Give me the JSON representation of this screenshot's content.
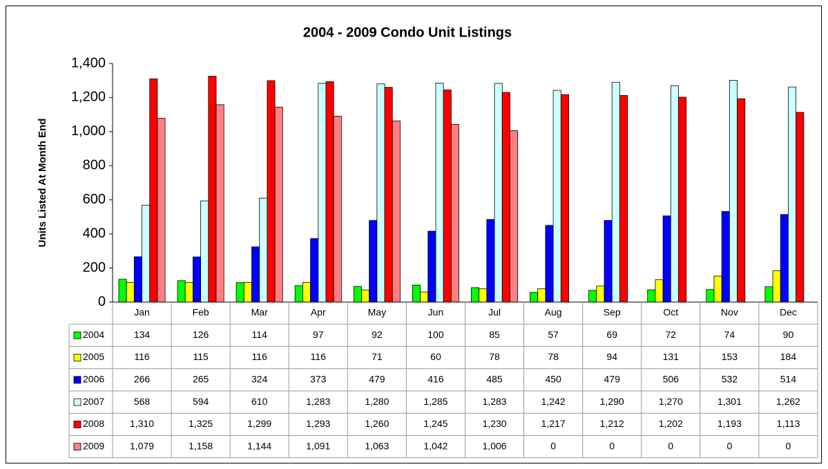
{
  "chart_data": {
    "type": "bar",
    "title": "2004 - 2009 Condo Unit Listings",
    "y_label": "Units Listed At Month End",
    "categories": [
      "Jan",
      "Feb",
      "Mar",
      "Apr",
      "May",
      "Jun",
      "Jul",
      "Aug",
      "Sep",
      "Oct",
      "Nov",
      "Dec"
    ],
    "series": [
      {
        "name": "2004",
        "color": "#00ff00",
        "values": [
          134,
          126,
          114,
          97,
          92,
          100,
          85,
          57,
          69,
          72,
          74,
          90
        ]
      },
      {
        "name": "2005",
        "color": "#ffff00",
        "values": [
          116,
          115,
          116,
          116,
          71,
          60,
          78,
          78,
          94,
          131,
          153,
          184
        ]
      },
      {
        "name": "2006",
        "color": "#0000ff",
        "values": [
          266,
          265,
          324,
          373,
          479,
          416,
          485,
          450,
          479,
          506,
          532,
          514
        ]
      },
      {
        "name": "2007",
        "color": "#ccffff",
        "values": [
          568,
          594,
          610,
          1283,
          1280,
          1285,
          1283,
          1242,
          1290,
          1270,
          1301,
          1262
        ],
        "value_labels": [
          "568",
          "594",
          "610",
          "1,283",
          "1,280",
          "1,285",
          "1,283",
          "1,242",
          "1,290",
          "1,270",
          "1,301",
          "1,262"
        ]
      },
      {
        "name": "2008",
        "color": "#ff0000",
        "values": [
          1310,
          1325,
          1299,
          1293,
          1260,
          1245,
          1230,
          1217,
          1212,
          1202,
          1193,
          1113
        ],
        "value_labels": [
          "1,310",
          "1,325",
          "1,299",
          "1,293",
          "1,260",
          "1,245",
          "1,230",
          "1,217",
          "1,212",
          "1,202",
          "1,193",
          "1,113"
        ]
      },
      {
        "name": "2009",
        "color": "#ff8080",
        "values": [
          1079,
          1158,
          1144,
          1091,
          1063,
          1042,
          1006,
          0,
          0,
          0,
          0,
          0
        ],
        "value_labels": [
          "1,079",
          "1,158",
          "1,144",
          "1,091",
          "1,063",
          "1,042",
          "1,006",
          "0",
          "0",
          "0",
          "0",
          "0"
        ]
      }
    ],
    "ylim": [
      0,
      1400
    ],
    "yticks": [
      0,
      200,
      400,
      600,
      800,
      {
        "value": 1000,
        "label": "1,000"
      },
      {
        "value": 1200,
        "label": "1,200"
      },
      {
        "value": 1400,
        "label": "1,400"
      }
    ],
    "grid": false,
    "data_table": true
  }
}
